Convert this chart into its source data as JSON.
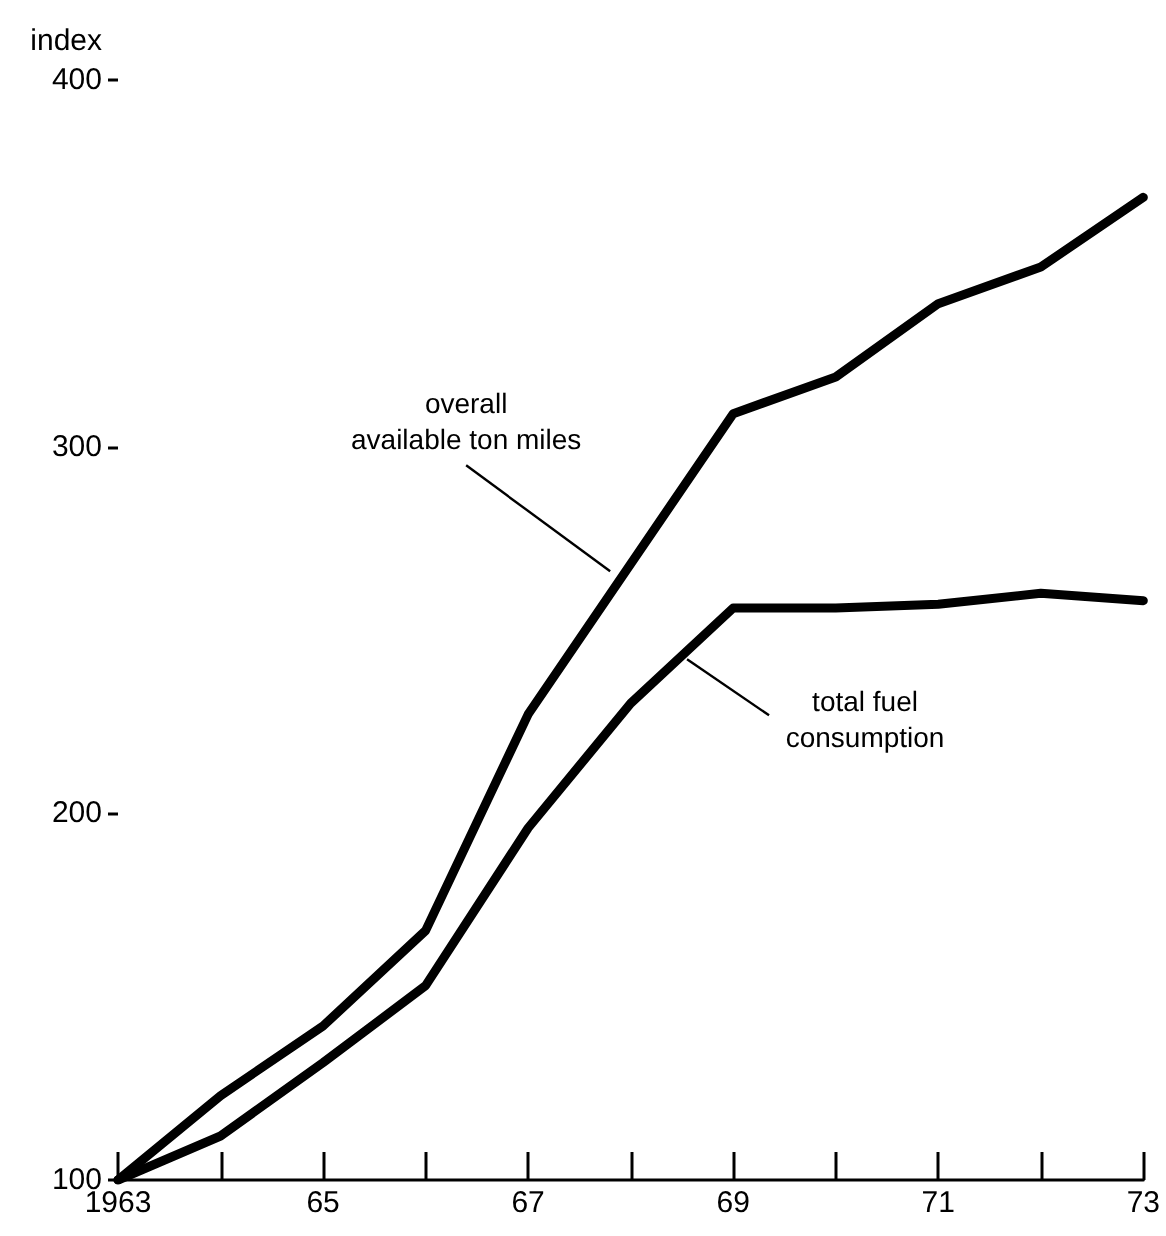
{
  "chart_data": {
    "type": "line",
    "ylabel": "index",
    "x": [
      1963,
      1964,
      1965,
      1966,
      1967,
      1968,
      1969,
      1970,
      1971,
      1972,
      1973
    ],
    "series": [
      {
        "color": "#000000",
        "values": [
          100,
          123,
          142,
          168,
          227,
          268,
          309,
          319,
          339,
          349,
          368
        ]
      },
      {
        "color": "#000000",
        "values": [
          100,
          112,
          132,
          153,
          196,
          230,
          256,
          256,
          257,
          260,
          258
        ]
      }
    ],
    "xlim": [
      1963,
      1973
    ],
    "xticks": [
      1963,
      {
        "value": 1964,
        "label": null
      },
      {
        "value": 1965,
        "label": "65"
      },
      {
        "value": 1966,
        "label": null
      },
      {
        "value": 1967,
        "label": "67"
      },
      {
        "value": 1968,
        "label": null
      },
      {
        "value": 1969,
        "label": "69"
      },
      {
        "value": 1970,
        "label": null
      },
      {
        "value": 1971,
        "label": "71"
      },
      {
        "value": 1972,
        "label": null
      },
      {
        "value": 1973,
        "label": "73"
      }
    ],
    "ylim": [
      100,
      400
    ],
    "yticks": [
      100,
      200,
      300,
      400
    ],
    "annotations": [
      {
        "text": "overall\navailable ton miles",
        "x": 1967.8,
        "y": 266
      },
      {
        "text": "total fuel\nconsumption",
        "x": 1968.55,
        "y": 242
      }
    ],
    "grid": false,
    "marker": "none",
    "line_style": "solid"
  }
}
